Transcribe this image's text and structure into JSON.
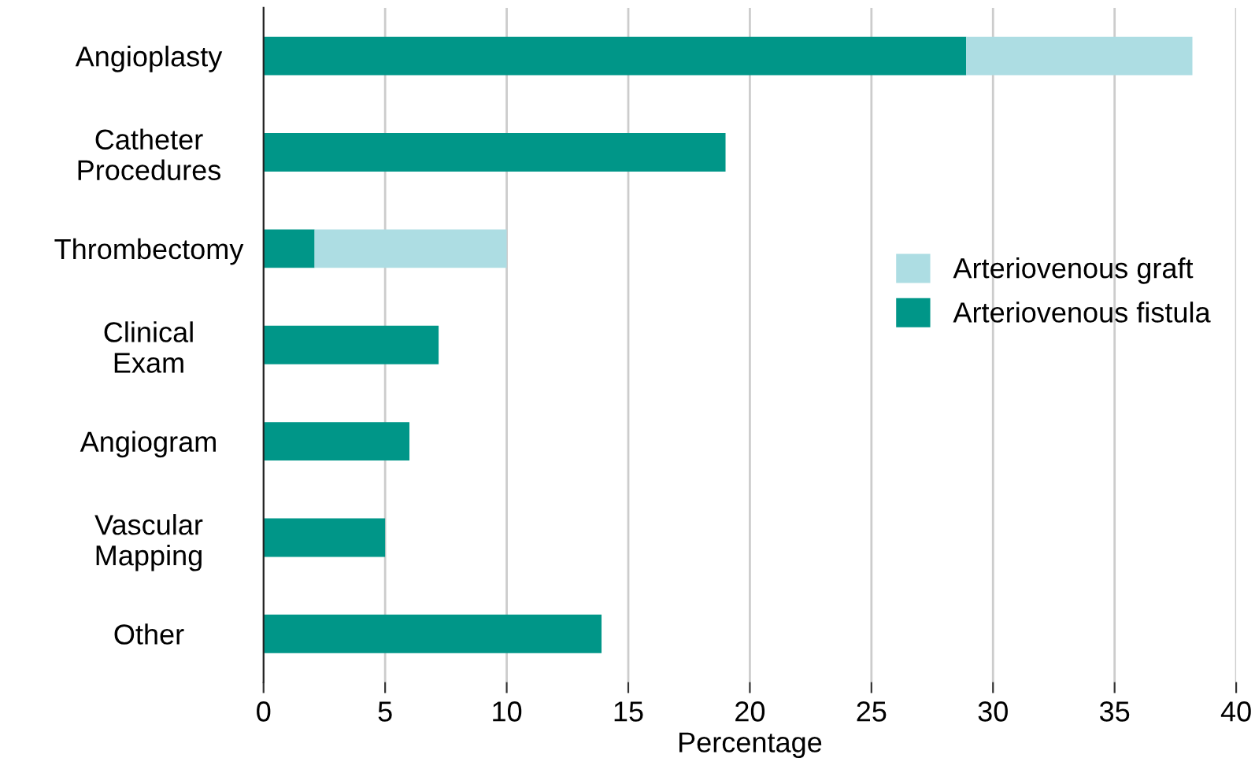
{
  "chart_data": {
    "type": "bar",
    "orientation": "horizontal",
    "stacked": true,
    "xlabel": "Percentage",
    "categories": [
      "Angioplasty",
      "Catheter\nProcedures",
      "Thrombectomy",
      "Clinical\nExam",
      "Angiogram",
      "Vascular\nMapping",
      "Other"
    ],
    "series": [
      {
        "name": "Arteriovenous fistula",
        "color": "#009688",
        "values": [
          28.9,
          19.0,
          2.1,
          7.2,
          6.0,
          5.0,
          13.9
        ]
      },
      {
        "name": "Arteriovenous graft",
        "color": "#addde3",
        "values": [
          9.3,
          null,
          7.9,
          null,
          null,
          null,
          null
        ]
      }
    ],
    "xlim": [
      0,
      40
    ],
    "xticks": [
      0,
      5,
      10,
      15,
      20,
      25,
      30,
      35,
      40
    ],
    "grid": "x",
    "legend": "center right"
  }
}
